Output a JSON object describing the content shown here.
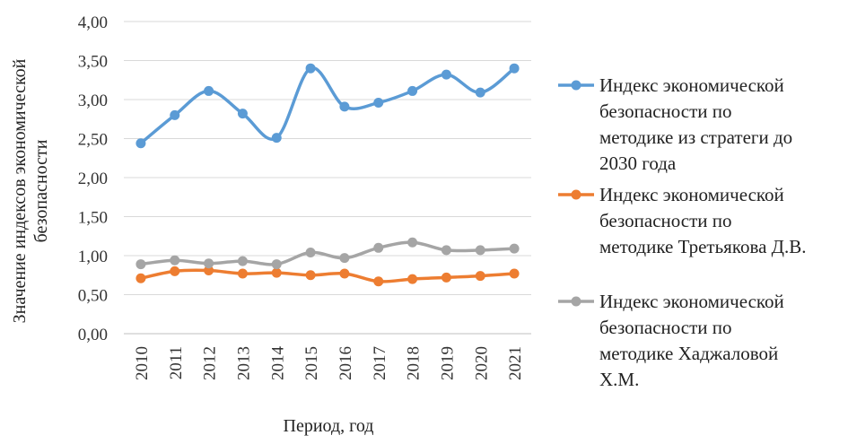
{
  "chart_data": {
    "type": "line",
    "title": "",
    "xlabel": "Период, год",
    "ylabel_lines": [
      "Значение индексов экономической",
      "безопасности"
    ],
    "x": [
      "2010",
      "2011",
      "2012",
      "2013",
      "2014",
      "2015",
      "2016",
      "2017",
      "2018",
      "2019",
      "2020",
      "2021"
    ],
    "ylim": [
      0,
      4
    ],
    "y_ticks": [
      "0,00",
      "0,50",
      "1,00",
      "1,50",
      "2,00",
      "2,50",
      "3,00",
      "3,50",
      "4,00"
    ],
    "grid": true,
    "legend_position": "right",
    "series": [
      {
        "name_lines": [
          "Индекс экономической",
          "безопасности по",
          "методике из стратеги до",
          "2030 года"
        ],
        "color": "#5B9BD5",
        "values": [
          2.44,
          2.8,
          3.11,
          2.82,
          2.51,
          3.4,
          2.91,
          2.96,
          3.11,
          3.32,
          3.09,
          3.4
        ]
      },
      {
        "name_lines": [
          "Индекс экономической",
          "безопасности по",
          "методике Третьякова Д.В."
        ],
        "color": "#ED7D31",
        "values": [
          0.71,
          0.8,
          0.81,
          0.77,
          0.78,
          0.75,
          0.77,
          0.67,
          0.7,
          0.72,
          0.74,
          0.77
        ]
      },
      {
        "name_lines": [
          "Индекс экономической",
          "безопасности по",
          "методике Хаджаловой",
          "Х.М."
        ],
        "color": "#A5A5A5",
        "values": [
          0.89,
          0.94,
          0.9,
          0.93,
          0.89,
          1.04,
          0.97,
          1.1,
          1.17,
          1.07,
          1.07,
          1.09
        ]
      }
    ]
  }
}
